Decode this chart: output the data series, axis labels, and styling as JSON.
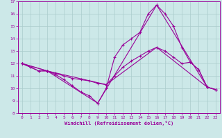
{
  "xlabel": "Windchill (Refroidissement éolien,°C)",
  "bg_color": "#cce8e8",
  "line_color": "#990099",
  "grid_color": "#aacccc",
  "xlim": [
    -0.5,
    23.5
  ],
  "ylim": [
    8,
    17
  ],
  "xticks": [
    0,
    1,
    2,
    3,
    4,
    5,
    6,
    7,
    8,
    9,
    10,
    11,
    12,
    13,
    14,
    15,
    16,
    17,
    18,
    19,
    20,
    21,
    22,
    23
  ],
  "yticks": [
    8,
    9,
    10,
    11,
    12,
    13,
    14,
    15,
    16,
    17
  ],
  "lines": [
    {
      "x": [
        0,
        1,
        2,
        3,
        4,
        5,
        6,
        7,
        8,
        9,
        10,
        11,
        12,
        13,
        14,
        15,
        16,
        17,
        18,
        19,
        20,
        21,
        22,
        23
      ],
      "y": [
        12.0,
        11.7,
        11.4,
        11.4,
        11.1,
        10.7,
        10.2,
        9.7,
        9.4,
        8.8,
        10.0,
        12.5,
        13.5,
        14.0,
        14.5,
        16.0,
        16.7,
        16.0,
        15.0,
        13.3,
        12.1,
        11.5,
        10.1,
        9.9
      ]
    },
    {
      "x": [
        0,
        1,
        2,
        3,
        4,
        5,
        6,
        7,
        8,
        9,
        10,
        11,
        12,
        13,
        14,
        15,
        16,
        17,
        18,
        19,
        20,
        21,
        22,
        23
      ],
      "y": [
        12.0,
        11.7,
        11.4,
        11.4,
        11.2,
        11.0,
        10.8,
        10.7,
        10.6,
        10.4,
        10.3,
        11.0,
        11.7,
        12.2,
        12.6,
        13.0,
        13.3,
        13.0,
        12.5,
        12.0,
        12.1,
        11.5,
        10.1,
        9.9
      ]
    },
    {
      "x": [
        0,
        3,
        9,
        16,
        22,
        23
      ],
      "y": [
        12.0,
        11.4,
        8.8,
        16.7,
        10.1,
        9.9
      ]
    },
    {
      "x": [
        0,
        3,
        10,
        16,
        22,
        23
      ],
      "y": [
        12.0,
        11.4,
        10.3,
        13.3,
        10.1,
        9.9
      ]
    }
  ]
}
